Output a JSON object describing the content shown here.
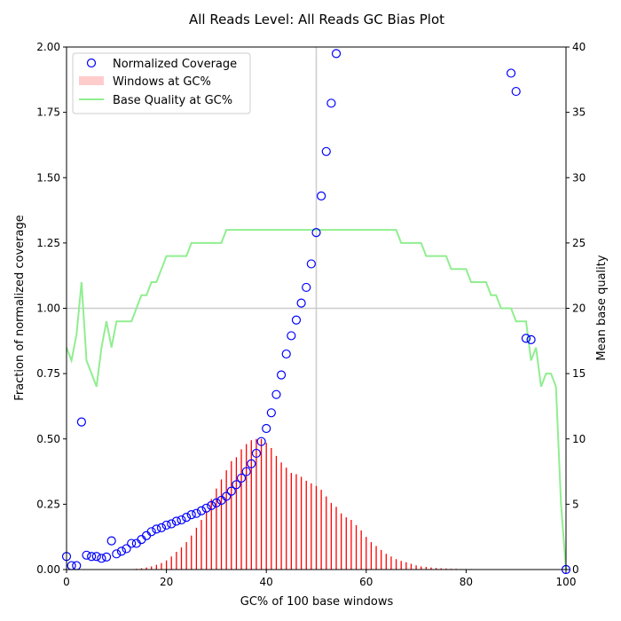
{
  "chart_data": {
    "type": "scatter",
    "title": "All Reads Level: All Reads  GC Bias Plot",
    "xlabel": "GC% of 100 base windows",
    "ylabel": "Fraction of normalized coverage",
    "y2label": "Mean base quality",
    "xlim": [
      0,
      100
    ],
    "ylim": [
      0,
      2.0
    ],
    "y2lim": [
      0,
      40
    ],
    "x_ticks": [
      0,
      20,
      40,
      60,
      80,
      100
    ],
    "y_ticks": [
      0.0,
      0.25,
      0.5,
      0.75,
      1.0,
      1.25,
      1.5,
      1.75,
      2.0
    ],
    "y_tick_labels": [
      "0.00",
      "0.25",
      "0.50",
      "0.75",
      "1.00",
      "1.25",
      "1.50",
      "1.75",
      "2.00"
    ],
    "y2_ticks": [
      0,
      5,
      10,
      15,
      20,
      25,
      30,
      35,
      40
    ],
    "reference_lines": {
      "x": 50,
      "y": 1.0
    },
    "legend_position": "top-left",
    "series": [
      {
        "name": "Normalized Coverage",
        "kind": "scatter",
        "color": "#0000ff",
        "points": [
          [
            0,
            0.05
          ],
          [
            1,
            0.015
          ],
          [
            2,
            0.015
          ],
          [
            3,
            0.565
          ],
          [
            4,
            0.055
          ],
          [
            5,
            0.05
          ],
          [
            6,
            0.05
          ],
          [
            7,
            0.043
          ],
          [
            8,
            0.048
          ],
          [
            9,
            0.11
          ],
          [
            10,
            0.06
          ],
          [
            11,
            0.07
          ],
          [
            12,
            0.08
          ],
          [
            13,
            0.1
          ],
          [
            14,
            0.1
          ],
          [
            15,
            0.115
          ],
          [
            16,
            0.13
          ],
          [
            17,
            0.145
          ],
          [
            18,
            0.155
          ],
          [
            19,
            0.16
          ],
          [
            20,
            0.17
          ],
          [
            21,
            0.175
          ],
          [
            22,
            0.185
          ],
          [
            23,
            0.19
          ],
          [
            24,
            0.2
          ],
          [
            25,
            0.21
          ],
          [
            26,
            0.215
          ],
          [
            27,
            0.225
          ],
          [
            28,
            0.235
          ],
          [
            29,
            0.245
          ],
          [
            30,
            0.255
          ],
          [
            31,
            0.265
          ],
          [
            32,
            0.28
          ],
          [
            33,
            0.3
          ],
          [
            34,
            0.325
          ],
          [
            35,
            0.35
          ],
          [
            36,
            0.375
          ],
          [
            37,
            0.405
          ],
          [
            38,
            0.445
          ],
          [
            39,
            0.49
          ],
          [
            40,
            0.54
          ],
          [
            41,
            0.6
          ],
          [
            42,
            0.67
          ],
          [
            43,
            0.745
          ],
          [
            44,
            0.825
          ],
          [
            45,
            0.895
          ],
          [
            46,
            0.955
          ],
          [
            47,
            1.02
          ],
          [
            48,
            1.08
          ],
          [
            49,
            1.17
          ],
          [
            50,
            1.29
          ],
          [
            51,
            1.43
          ],
          [
            52,
            1.6
          ],
          [
            53,
            1.785
          ],
          [
            54,
            1.975
          ],
          [
            89,
            1.9
          ],
          [
            90,
            1.83
          ],
          [
            92,
            0.885
          ],
          [
            93,
            0.88
          ],
          [
            100,
            0.0
          ]
        ]
      },
      {
        "name": "Windows at GC%",
        "kind": "bar",
        "color": "#ff0000",
        "legend_color": "#ffcccc",
        "x": [
          14,
          15,
          16,
          17,
          18,
          19,
          20,
          21,
          22,
          23,
          24,
          25,
          26,
          27,
          28,
          29,
          30,
          31,
          32,
          33,
          34,
          35,
          36,
          37,
          38,
          39,
          40,
          41,
          42,
          43,
          44,
          45,
          46,
          47,
          48,
          49,
          50,
          51,
          52,
          53,
          54,
          55,
          56,
          57,
          58,
          59,
          60,
          61,
          62,
          63,
          64,
          65,
          66,
          67,
          68,
          69,
          70,
          71,
          72,
          73,
          74,
          75,
          76,
          77,
          78,
          79,
          80,
          81,
          82,
          83,
          84,
          85
        ],
        "values": [
          0.003,
          0.005,
          0.008,
          0.012,
          0.018,
          0.025,
          0.035,
          0.05,
          0.068,
          0.085,
          0.105,
          0.13,
          0.16,
          0.19,
          0.225,
          0.27,
          0.31,
          0.345,
          0.38,
          0.415,
          0.43,
          0.46,
          0.48,
          0.495,
          0.5,
          0.5,
          0.485,
          0.465,
          0.435,
          0.41,
          0.39,
          0.37,
          0.365,
          0.355,
          0.34,
          0.33,
          0.32,
          0.305,
          0.28,
          0.255,
          0.24,
          0.215,
          0.2,
          0.19,
          0.17,
          0.15,
          0.125,
          0.105,
          0.09,
          0.075,
          0.06,
          0.05,
          0.04,
          0.033,
          0.028,
          0.022,
          0.016,
          0.012,
          0.01,
          0.008,
          0.006,
          0.005,
          0.004,
          0.003,
          0.003,
          0.002,
          0.002,
          0.002,
          0.001,
          0.001,
          0.001,
          0.001
        ]
      },
      {
        "name": "Base Quality at GC%",
        "kind": "line",
        "axis": "right",
        "color": "#90ee90",
        "x": [
          0,
          1,
          2,
          3,
          4,
          5,
          6,
          7,
          8,
          9,
          10,
          11,
          12,
          13,
          14,
          15,
          16,
          17,
          18,
          19,
          20,
          21,
          22,
          23,
          24,
          25,
          26,
          27,
          28,
          29,
          30,
          31,
          32,
          33,
          34,
          35,
          36,
          37,
          38,
          39,
          40,
          41,
          42,
          43,
          44,
          45,
          46,
          47,
          48,
          49,
          50,
          51,
          52,
          53,
          54,
          55,
          56,
          57,
          58,
          59,
          60,
          61,
          62,
          63,
          64,
          65,
          66,
          67,
          68,
          69,
          70,
          71,
          72,
          73,
          74,
          75,
          76,
          77,
          78,
          79,
          80,
          81,
          82,
          83,
          84,
          85,
          86,
          87,
          88,
          89,
          90,
          91,
          92,
          93,
          94,
          95,
          96,
          97,
          98,
          99,
          100
        ],
        "values": [
          17,
          16,
          18,
          22,
          16,
          15,
          14,
          17,
          19,
          17,
          19,
          19,
          19,
          19,
          20,
          21,
          21,
          22,
          22,
          23,
          24,
          24,
          24,
          24,
          24,
          25,
          25,
          25,
          25,
          25,
          25,
          25,
          26,
          26,
          26,
          26,
          26,
          26,
          26,
          26,
          26,
          26,
          26,
          26,
          26,
          26,
          26,
          26,
          26,
          26,
          26,
          26,
          26,
          26,
          26,
          26,
          26,
          26,
          26,
          26,
          26,
          26,
          26,
          26,
          26,
          26,
          26,
          25,
          25,
          25,
          25,
          25,
          24,
          24,
          24,
          24,
          24,
          23,
          23,
          23,
          23,
          22,
          22,
          22,
          22,
          21,
          21,
          20,
          20,
          20,
          19,
          19,
          19,
          16,
          17,
          14,
          15,
          15,
          14,
          5,
          0
        ]
      }
    ]
  }
}
